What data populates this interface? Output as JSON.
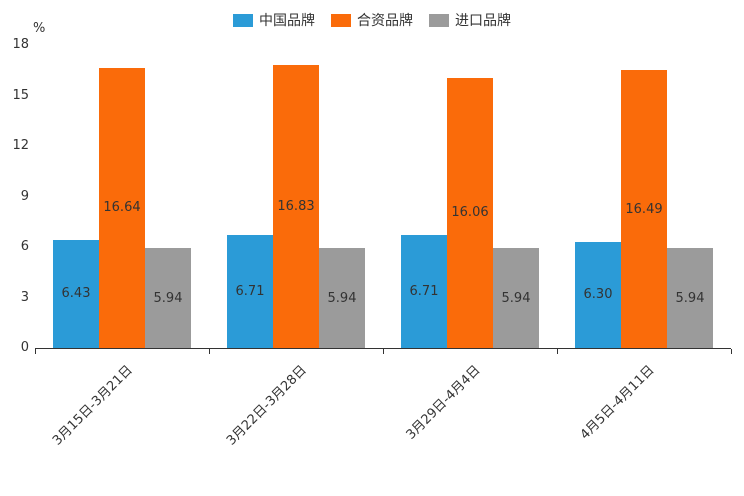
{
  "chart": {
    "y_unit_label": "%"
  },
  "legend": {
    "items": [
      {
        "label": "中国品牌",
        "color": "#2B9BD7"
      },
      {
        "label": "合资品牌",
        "color": "#FA6B0A"
      },
      {
        "label": "进口品牌",
        "color": "#9B9B9B"
      }
    ]
  },
  "chart_data": {
    "type": "bar",
    "title": "",
    "xlabel": "",
    "ylabel": "%",
    "categories": [
      "3月15日-3月21日",
      "3月22日-3月28日",
      "3月29日-4月4日",
      "4月5日-4月11日"
    ],
    "series": [
      {
        "name": "中国品牌",
        "color": "#2B9BD7",
        "values": [
          6.43,
          6.71,
          6.71,
          6.3
        ]
      },
      {
        "name": "合资品牌",
        "color": "#FA6B0A",
        "values": [
          16.64,
          16.83,
          16.06,
          16.49
        ]
      },
      {
        "name": "进口品牌",
        "color": "#9B9B9B",
        "values": [
          5.94,
          5.94,
          5.94,
          5.94
        ]
      }
    ],
    "ylim": [
      0,
      18
    ],
    "yticks": [
      0,
      3,
      6,
      9,
      12,
      15,
      18
    ],
    "grid": false,
    "legend_position": "top",
    "value_labels": "inside-center",
    "value_label_decimals": 2
  }
}
